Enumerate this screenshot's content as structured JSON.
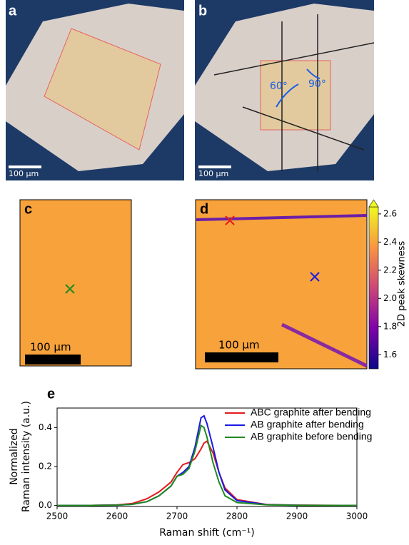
{
  "panel_labels": [
    "a",
    "b",
    "c",
    "d",
    "e"
  ],
  "scale_bars": [
    "100 µm",
    "100 µm",
    "100 µm",
    "100 µm"
  ],
  "angle_labels": [
    "60°",
    "90°"
  ],
  "colorbar": {
    "label": "2D peak skewness",
    "ylim": [
      1.5,
      2.65
    ],
    "yticks": [
      1.6,
      1.8,
      {
        "value": 2,
        "label": "2.0"
      },
      2.2,
      2.4,
      2.6
    ]
  },
  "chart_data": {
    "type": "line",
    "xlabel": "Raman shift (cm⁻¹)",
    "ylabel": [
      "Normalized",
      "Raman intensity (a.u.)"
    ],
    "x": [
      2500,
      2550,
      2600,
      2625,
      2650,
      2670,
      2690,
      2700,
      2710,
      2720,
      2730,
      2740,
      2745,
      2750,
      2760,
      2770,
      2780,
      2800,
      2850,
      2900,
      3000
    ],
    "series": [
      {
        "name": "ABC graphite after bending",
        "color": "#e41a1c",
        "values": [
          0,
          0,
          0.003,
          0.01,
          0.035,
          0.07,
          0.12,
          0.17,
          0.21,
          0.22,
          0.24,
          0.29,
          0.32,
          0.33,
          0.27,
          0.17,
          0.09,
          0.03,
          0.005,
          0.002,
          0
        ]
      },
      {
        "name": "AB graphite after bending",
        "color": "#1a1ae6",
        "values": [
          0,
          0,
          0.002,
          0.006,
          0.02,
          0.05,
          0.1,
          0.15,
          0.17,
          0.2,
          0.3,
          0.45,
          0.46,
          0.42,
          0.3,
          0.17,
          0.08,
          0.025,
          0.004,
          0.001,
          0
        ]
      },
      {
        "name": "AB graphite before bending",
        "color": "#1f8a1f",
        "values": [
          0,
          0,
          0.002,
          0.006,
          0.02,
          0.05,
          0.1,
          0.15,
          0.16,
          0.19,
          0.28,
          0.41,
          0.4,
          0.35,
          0.22,
          0.12,
          0.05,
          0.015,
          0.003,
          0.001,
          0
        ]
      }
    ],
    "xlim": [
      2500,
      3000
    ],
    "xticks": [
      2500,
      2600,
      2700,
      2800,
      2900,
      3000
    ],
    "ylim": [
      -0.005,
      0.5
    ],
    "yticks": [
      {
        "value": 0,
        "label": "0.0"
      },
      0.2,
      0.4
    ],
    "legend": "upper right"
  }
}
